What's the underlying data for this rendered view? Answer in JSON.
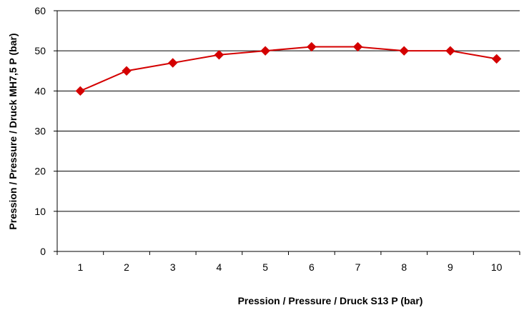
{
  "chart_data": {
    "type": "line",
    "title": "",
    "xlabel": "Pression / Pressure / Druck S13 P (bar)",
    "ylabel": "Pression / Pressure / Druck MH7,5 P (bar)",
    "categories": [
      "1",
      "2",
      "3",
      "4",
      "5",
      "6",
      "7",
      "8",
      "9",
      "10"
    ],
    "series": [
      {
        "values": [
          40,
          45,
          47,
          49,
          50,
          51,
          51,
          50,
          50,
          48
        ],
        "color": "#d40000",
        "marker": "diamond"
      }
    ],
    "ylim": [
      0,
      60
    ],
    "yticks": [
      "0",
      "10",
      "20",
      "30",
      "40",
      "50",
      "60"
    ],
    "grid": true,
    "legend": "none"
  }
}
